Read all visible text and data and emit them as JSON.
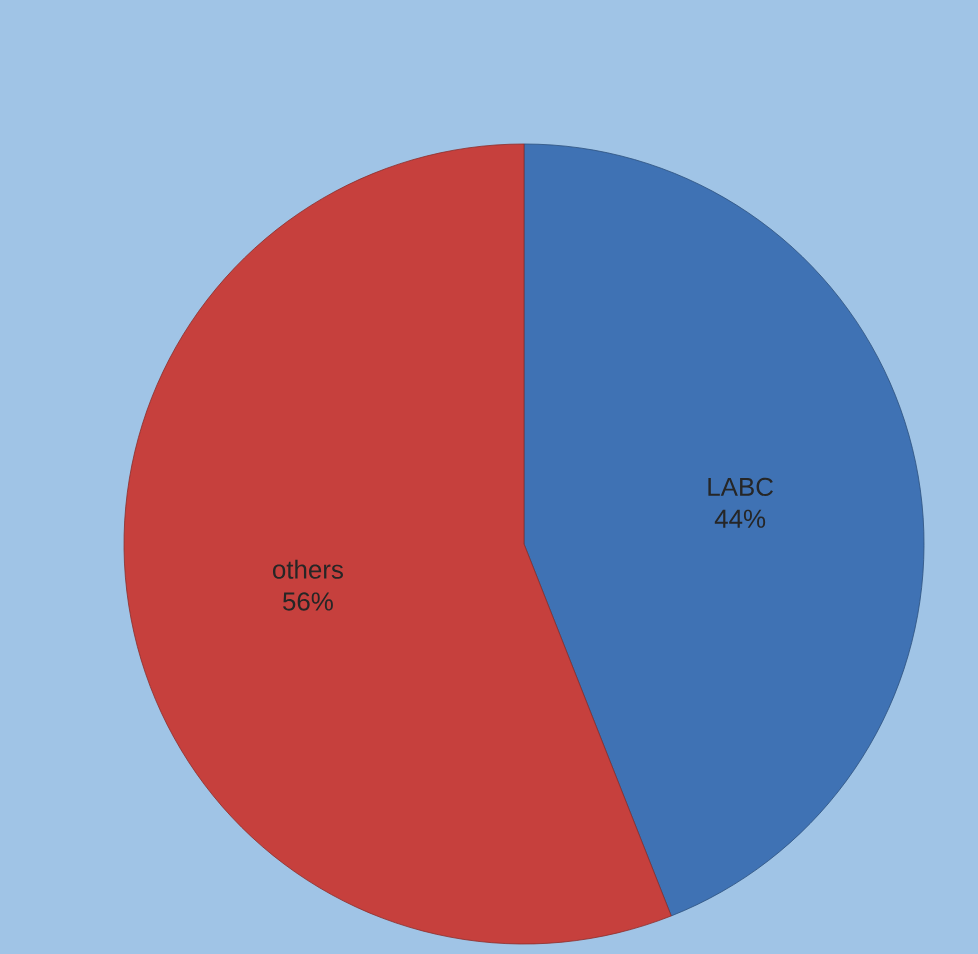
{
  "chart_data": {
    "type": "pie",
    "categories": [
      "LABC",
      "others"
    ],
    "values": [
      44,
      56
    ],
    "value_labels": [
      "44%",
      "56%"
    ],
    "colors": [
      "#3f72b4",
      "#c6403d"
    ]
  }
}
